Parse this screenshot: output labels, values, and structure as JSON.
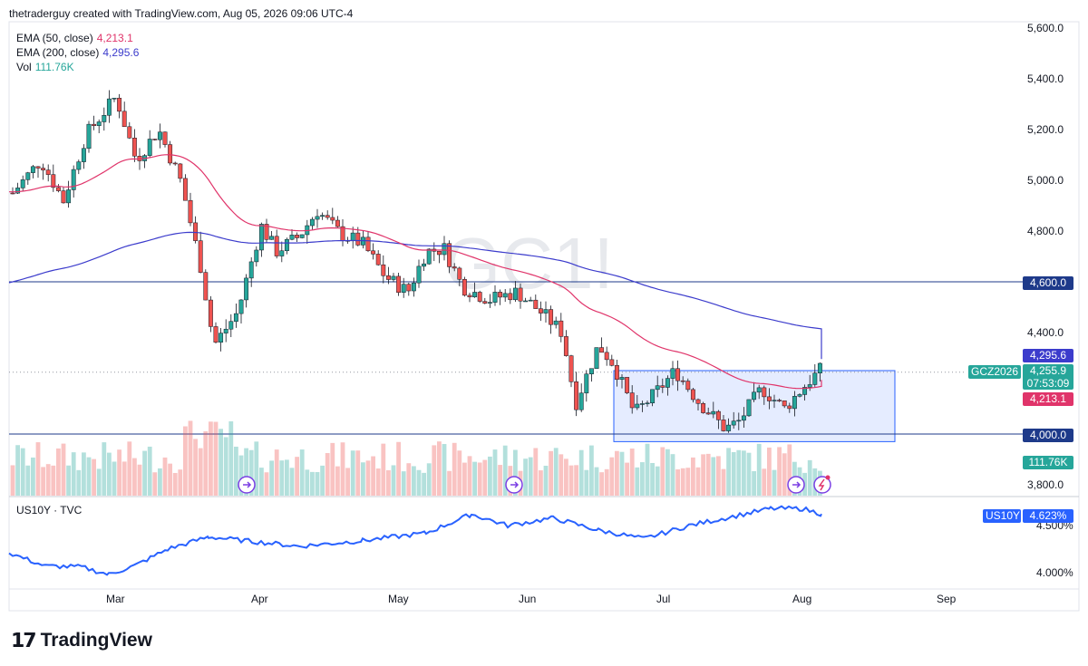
{
  "header": {
    "text": "thetraderguy created with TradingView.com, Aug 05, 2026 09:06 UTC-4"
  },
  "legend": [
    {
      "name": "EMA (50, close)",
      "value": "4,213.1",
      "color": "#e0346a"
    },
    {
      "name": "EMA (200, close)",
      "value": "4,295.6",
      "color": "#3c3ccc"
    },
    {
      "name": "Vol",
      "value": "111.76K",
      "color": "#26a69a"
    }
  ],
  "watermark": "GC1!",
  "subpane": {
    "legend": "US10Y · TVC",
    "tag_symbol": "US10Y",
    "tag_value": "4.623%",
    "ticks": [
      "4.500%",
      "4.000%"
    ],
    "color": "#2962ff"
  },
  "price_axis": [
    "5,600.0",
    "5,400.0",
    "5,200.0",
    "5,000.0",
    "4,800.0",
    "4,400.0",
    "3,800.0"
  ],
  "time_axis": [
    "Mar",
    "Apr",
    "May",
    "Jun",
    "Jul",
    "Aug",
    "Sep"
  ],
  "tags": {
    "ema200": "4,295.6",
    "last": "4,255.9",
    "countdown": "07:53:09",
    "ema50": "4,213.1",
    "level_high": "4,600.0",
    "level_low": "4,000.0",
    "volume": "111.76K",
    "symbol": "GCZ2026"
  },
  "footer": {
    "brand": "TradingView"
  },
  "chart_data": {
    "type": "line",
    "description_units": "price USD",
    "horizontal_levels": [
      4600,
      4000
    ],
    "range_box": {
      "from": "Jun 22",
      "to": "Aug 20",
      "low": 3970,
      "high": 4250
    },
    "ylim": [
      3800,
      5600
    ],
    "current_price": 4255.9,
    "ema50_last": 4213.1,
    "ema200_last": 4295.6,
    "volume_last": "111.76K",
    "us10y_last": 4.623
  }
}
